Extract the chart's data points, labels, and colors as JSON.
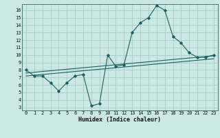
{
  "xlabel": "Humidex (Indice chaleur)",
  "bg_color": "#cce8e4",
  "grid_color": "#a8ccc8",
  "line_color": "#1a6060",
  "xlim": [
    -0.5,
    23.5
  ],
  "ylim": [
    2.6,
    16.8
  ],
  "yticks": [
    3,
    4,
    5,
    6,
    7,
    8,
    9,
    10,
    11,
    12,
    13,
    14,
    15,
    16
  ],
  "xticks": [
    0,
    1,
    2,
    3,
    4,
    5,
    6,
    7,
    8,
    9,
    10,
    11,
    12,
    13,
    14,
    15,
    16,
    17,
    18,
    19,
    20,
    21,
    22,
    23
  ],
  "curve_x": [
    0,
    1,
    2,
    3,
    4,
    5,
    6,
    7,
    8,
    9,
    10,
    11,
    12,
    13,
    14,
    15,
    16,
    17,
    18,
    19,
    20,
    21,
    22,
    23
  ],
  "curve_y": [
    8.0,
    7.2,
    7.2,
    6.3,
    5.2,
    6.3,
    7.2,
    7.4,
    3.2,
    3.5,
    10.0,
    8.5,
    8.7,
    13.0,
    14.3,
    15.0,
    16.6,
    16.0,
    12.5,
    11.6,
    10.3,
    9.7,
    9.7,
    10.0
  ],
  "line2_x": [
    0,
    23
  ],
  "line2_y": [
    7.2,
    9.5
  ],
  "line3_x": [
    0,
    23
  ],
  "line3_y": [
    7.6,
    9.9
  ]
}
